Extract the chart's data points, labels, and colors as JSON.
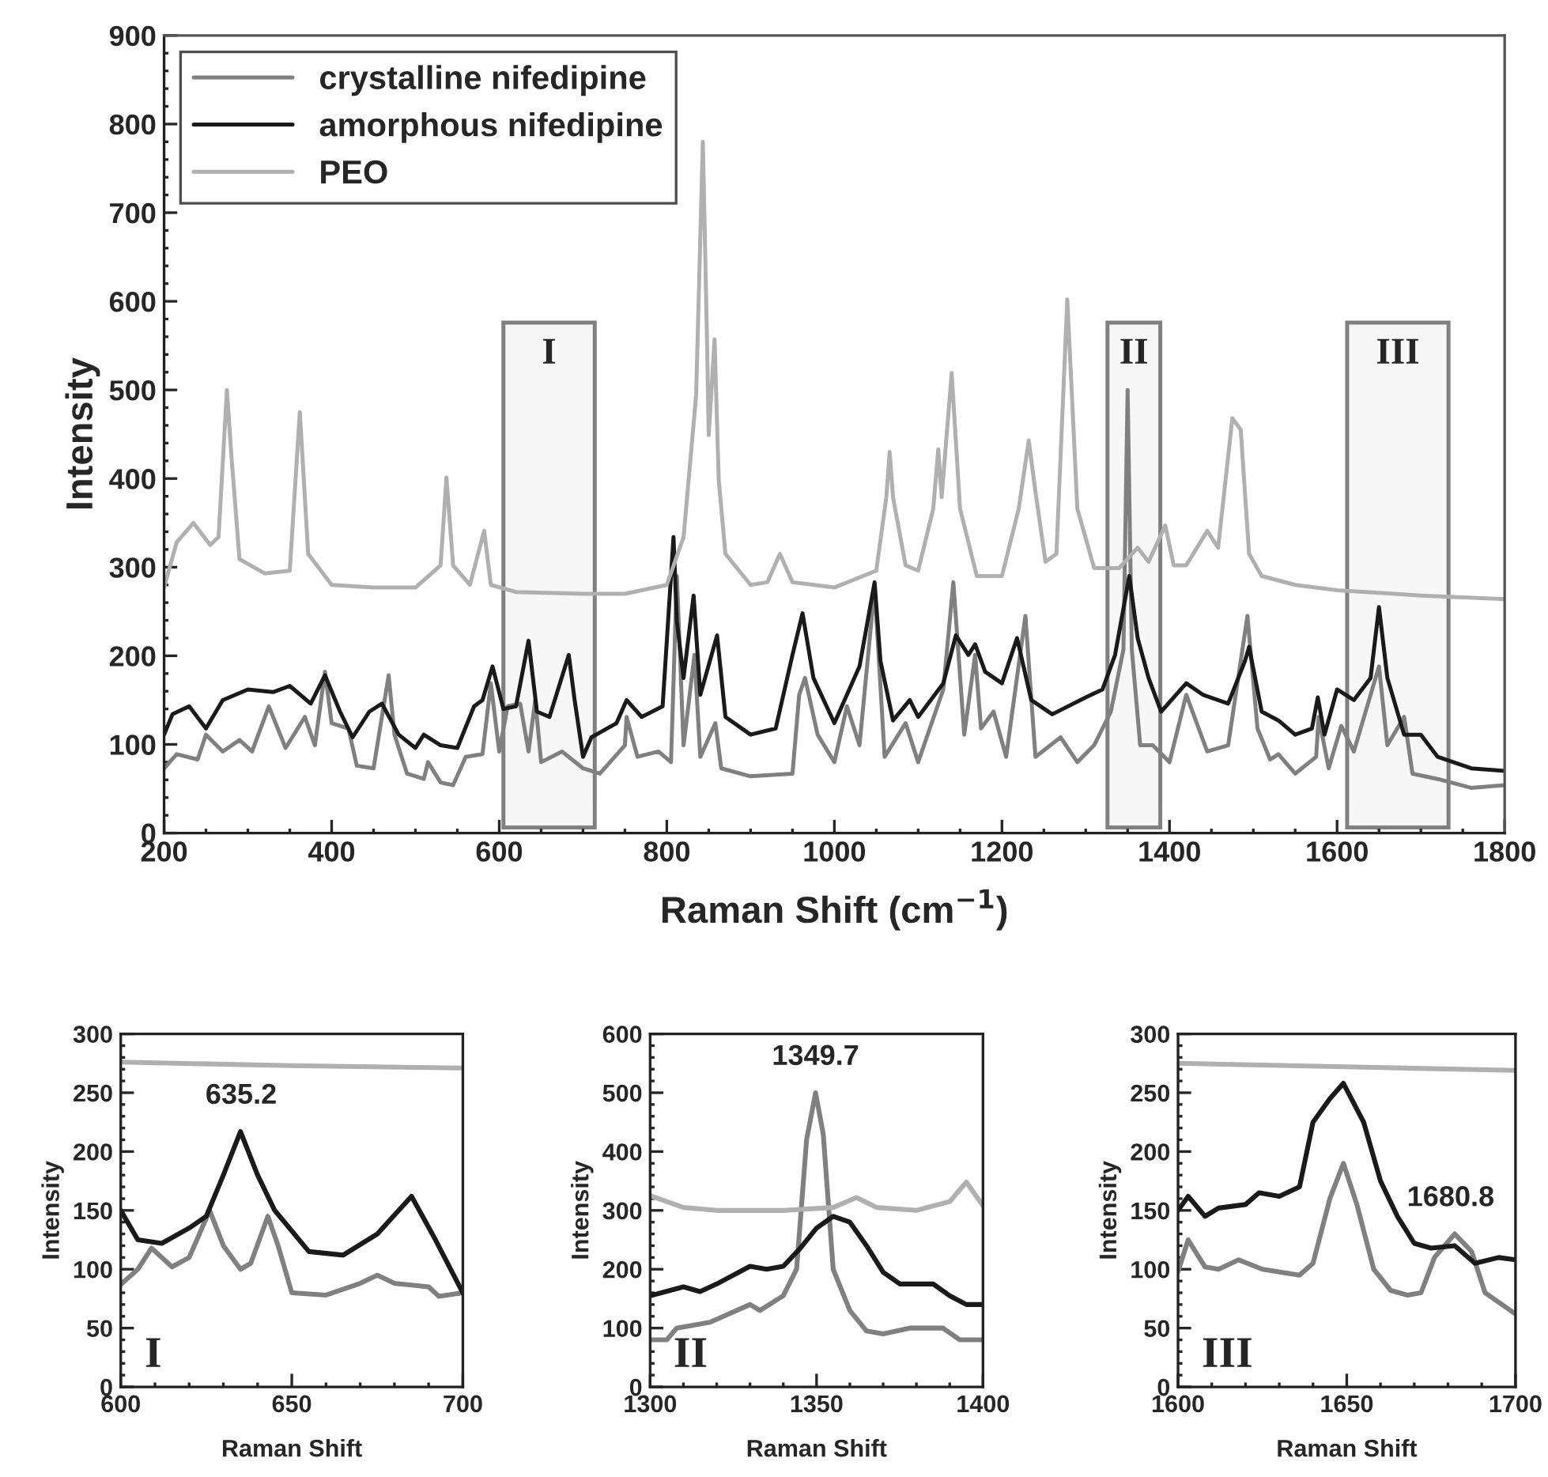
{
  "chart_data": [
    {
      "type": "line",
      "xlabel": "Raman Shift (cm$^{−1}$)",
      "ylabel": "Intensity",
      "xlim": [
        200,
        1800
      ],
      "ylim": [
        0,
        900
      ],
      "xticks": [
        200,
        400,
        600,
        800,
        1000,
        1200,
        1400,
        1600,
        1800
      ],
      "yticks": [
        0,
        100,
        200,
        300,
        400,
        500,
        600,
        700,
        800,
        900
      ],
      "legend": "top left",
      "grid": false,
      "bands": [
        {
          "axis": "x",
          "from": 605,
          "to": 714,
          "label": "I",
          "color": "#808080"
        },
        {
          "axis": "x",
          "from": 1326,
          "to": 1389,
          "label": "II",
          "color": "#808080"
        },
        {
          "axis": "x",
          "from": 1612,
          "to": 1733,
          "label": "III",
          "color": "#808080"
        }
      ],
      "series": [
        {
          "name": "crystalline nifedipine",
          "color": "#808080",
          "x": [
            200,
            215,
            240,
            250,
            270,
            290,
            305,
            325,
            345,
            368,
            380,
            392,
            400,
            420,
            430,
            450,
            468,
            475,
            490,
            510,
            515,
            530,
            545,
            560,
            580,
            590,
            600,
            610,
            625,
            635,
            643,
            650,
            675,
            700,
            720,
            750,
            752,
            765,
            790,
            805,
            812,
            820,
            833,
            840,
            858,
            865,
            900,
            950,
            958,
            965,
            980,
            1000,
            1015,
            1030,
            1048,
            1060,
            1085,
            1100,
            1130,
            1142,
            1155,
            1168,
            1175,
            1190,
            1205,
            1228,
            1240,
            1270,
            1290,
            1310,
            1330,
            1345,
            1350,
            1355,
            1365,
            1380,
            1400,
            1420,
            1445,
            1470,
            1493,
            1505,
            1520,
            1530,
            1550,
            1575,
            1578,
            1590,
            1605,
            1620,
            1650,
            1660,
            1680,
            1690,
            1720,
            1760,
            1800
          ],
          "values": [
            73,
            89,
            83,
            111,
            92,
            105,
            92,
            143,
            96,
            131,
            99,
            182,
            124,
            118,
            76,
            73,
            178,
            111,
            67,
            61,
            80,
            57,
            54,
            86,
            89,
            169,
            92,
            143,
            146,
            92,
            150,
            80,
            92,
            73,
            67,
            99,
            131,
            86,
            92,
            80,
            290,
            99,
            201,
            86,
            124,
            73,
            64,
            67,
            156,
            175,
            111,
            80,
            143,
            99,
            277,
            86,
            124,
            80,
            162,
            283,
            111,
            201,
            118,
            137,
            86,
            245,
            86,
            108,
            80,
            99,
            137,
            207,
            500,
            207,
            99,
            99,
            80,
            156,
            92,
            99,
            245,
            118,
            83,
            89,
            67,
            86,
            131,
            73,
            121,
            92,
            188,
            99,
            131,
            67,
            61,
            51,
            54
          ]
        },
        {
          "name": "amorphous nifedipine",
          "color": "#1a1a1a",
          "x": [
            200,
            210,
            230,
            250,
            270,
            300,
            330,
            350,
            375,
            392,
            410,
            425,
            445,
            460,
            480,
            500,
            510,
            530,
            550,
            570,
            580,
            592,
            605,
            620,
            635,
            645,
            660,
            683,
            690,
            700,
            710,
            740,
            752,
            770,
            795,
            808,
            812,
            820,
            832,
            840,
            860,
            870,
            900,
            930,
            950,
            962,
            975,
            1000,
            1030,
            1048,
            1055,
            1070,
            1090,
            1100,
            1130,
            1145,
            1160,
            1168,
            1180,
            1200,
            1218,
            1235,
            1260,
            1300,
            1320,
            1335,
            1352,
            1362,
            1375,
            1390,
            1420,
            1440,
            1470,
            1490,
            1495,
            1510,
            1530,
            1550,
            1570,
            1577,
            1585,
            1600,
            1620,
            1640,
            1650,
            1660,
            1680,
            1700,
            1720,
            1760,
            1800
          ],
          "values": [
            111,
            134,
            143,
            118,
            150,
            162,
            159,
            166,
            146,
            178,
            137,
            108,
            137,
            146,
            111,
            96,
            111,
            99,
            96,
            143,
            150,
            188,
            140,
            143,
            217,
            137,
            131,
            201,
            150,
            86,
            108,
            124,
            150,
            131,
            143,
            334,
            239,
            175,
            268,
            156,
            223,
            131,
            111,
            118,
            201,
            248,
            175,
            124,
            188,
            283,
            194,
            127,
            150,
            131,
            169,
            223,
            201,
            213,
            182,
            169,
            220,
            150,
            134,
            153,
            162,
            201,
            290,
            220,
            175,
            137,
            169,
            156,
            146,
            194,
            210,
            137,
            127,
            111,
            118,
            153,
            111,
            162,
            150,
            175,
            255,
            175,
            111,
            111,
            86,
            73,
            70
          ]
        },
        {
          "name": "PEO",
          "color": "#b0b0b0",
          "x": [
            200,
            215,
            235,
            255,
            265,
            275,
            280,
            290,
            320,
            350,
            362,
            372,
            400,
            450,
            500,
            530,
            537,
            545,
            565,
            582,
            590,
            620,
            700,
            750,
            800,
            820,
            835,
            843,
            848,
            850,
            857,
            862,
            870,
            900,
            920,
            935,
            950,
            1000,
            1050,
            1062,
            1066,
            1070,
            1085,
            1100,
            1118,
            1124,
            1128,
            1140,
            1150,
            1170,
            1200,
            1220,
            1232,
            1240,
            1252,
            1265,
            1278,
            1290,
            1310,
            1340,
            1362,
            1375,
            1395,
            1405,
            1420,
            1445,
            1458,
            1475,
            1485,
            1495,
            1510,
            1550,
            1600,
            1700,
            1800
          ],
          "values": [
            277,
            328,
            350,
            325,
            334,
            500,
            430,
            309,
            293,
            296,
            475,
            315,
            280,
            277,
            277,
            302,
            401,
            302,
            280,
            341,
            280,
            272,
            270,
            270,
            280,
            334,
            494,
            780,
            557,
            449,
            557,
            398,
            315,
            280,
            283,
            315,
            283,
            277,
            296,
            379,
            430,
            379,
            302,
            296,
            366,
            433,
            379,
            519,
            366,
            290,
            290,
            366,
            443,
            385,
            306,
            315,
            602,
            366,
            299,
            299,
            322,
            306,
            347,
            302,
            302,
            341,
            322,
            468,
            455,
            315,
            290,
            280,
            274,
            268,
            264
          ]
        }
      ]
    },
    {
      "type": "line",
      "xlabel": "Raman Shift",
      "ylabel": "Intensity",
      "xlim": [
        600,
        700
      ],
      "ylim": [
        0,
        300
      ],
      "xticks": [
        600,
        650,
        700
      ],
      "yticks": [
        0,
        50,
        100,
        150,
        200,
        250,
        300
      ],
      "grid": false,
      "annotations": [
        {
          "text": "635.2",
          "x": 635.2,
          "y": 217
        },
        "I"
      ],
      "series": [
        {
          "color": "#808080",
          "x": [
            600,
            605,
            609,
            615,
            620,
            626,
            630,
            635,
            638,
            643,
            646,
            650,
            660,
            670,
            675,
            680,
            690,
            693,
            700
          ],
          "values": [
            87,
            100,
            118,
            102,
            110,
            150,
            120,
            100,
            105,
            145,
            120,
            80,
            78,
            88,
            95,
            88,
            85,
            77,
            80
          ]
        },
        {
          "color": "#1a1a1a",
          "x": [
            600,
            605,
            612,
            620,
            625,
            630,
            635,
            640,
            645,
            655,
            665,
            675,
            685,
            692,
            700
          ],
          "values": [
            150,
            125,
            122,
            135,
            145,
            180,
            217,
            180,
            150,
            115,
            112,
            130,
            162,
            125,
            80
          ]
        },
        {
          "color": "#b0b0b0",
          "x": [
            600,
            650,
            700
          ],
          "values": [
            276,
            273,
            271
          ]
        }
      ]
    },
    {
      "type": "line",
      "xlabel": "Raman Shift",
      "ylabel": "Intensity",
      "xlim": [
        1300,
        1400
      ],
      "ylim": [
        0,
        600
      ],
      "xticks": [
        1300,
        1350,
        1400
      ],
      "yticks": [
        0,
        100,
        200,
        300,
        400,
        500,
        600
      ],
      "grid": false,
      "annotations": [
        {
          "text": "1349.7",
          "x": 1349.7,
          "y": 500
        },
        "II"
      ],
      "series": [
        {
          "color": "#808080",
          "x": [
            1300,
            1305,
            1308,
            1318,
            1330,
            1333,
            1340,
            1344,
            1347,
            1349.7,
            1352,
            1355,
            1360,
            1365,
            1370,
            1378,
            1388,
            1393,
            1400
          ],
          "values": [
            80,
            80,
            100,
            110,
            140,
            130,
            155,
            200,
            420,
            500,
            430,
            200,
            130,
            95,
            90,
            100,
            100,
            80,
            80
          ]
        },
        {
          "color": "#1a1a1a",
          "x": [
            1300,
            1310,
            1315,
            1320,
            1330,
            1335,
            1340,
            1345,
            1350,
            1355,
            1360,
            1365,
            1370,
            1375,
            1380,
            1385,
            1390,
            1395,
            1400
          ],
          "values": [
            155,
            170,
            162,
            175,
            205,
            200,
            205,
            235,
            270,
            290,
            280,
            240,
            195,
            175,
            175,
            175,
            155,
            140,
            140
          ]
        },
        {
          "color": "#b0b0b0",
          "x": [
            1300,
            1310,
            1320,
            1340,
            1355,
            1362,
            1368,
            1380,
            1390,
            1395,
            1400
          ],
          "values": [
            325,
            305,
            300,
            300,
            305,
            322,
            305,
            300,
            315,
            348,
            308
          ]
        }
      ]
    },
    {
      "type": "line",
      "xlabel": "Raman Shift",
      "ylabel": "Intensity",
      "xlim": [
        1600,
        1700
      ],
      "ylim": [
        0,
        300
      ],
      "xticks": [
        1600,
        1650,
        1700
      ],
      "yticks": [
        0,
        50,
        100,
        150,
        200,
        250,
        300
      ],
      "grid": false,
      "annotations": [
        {
          "text": "1680.8",
          "x": 1680.8,
          "y": 130
        },
        "III"
      ],
      "series": [
        {
          "color": "#808080",
          "x": [
            1600,
            1603,
            1608,
            1612,
            1618,
            1625,
            1636,
            1640,
            1645,
            1649,
            1653,
            1658,
            1663,
            1668,
            1672,
            1676,
            1682,
            1687,
            1691,
            1700
          ],
          "values": [
            98,
            125,
            102,
            100,
            108,
            100,
            95,
            105,
            160,
            190,
            155,
            100,
            82,
            78,
            80,
            110,
            130,
            115,
            80,
            62
          ]
        },
        {
          "color": "#1a1a1a",
          "x": [
            1600,
            1603,
            1608,
            1612,
            1620,
            1624,
            1630,
            1636,
            1640,
            1645,
            1649,
            1655,
            1660,
            1665,
            1670,
            1675,
            1682,
            1688,
            1695,
            1700
          ],
          "values": [
            150,
            162,
            145,
            152,
            155,
            165,
            162,
            170,
            225,
            245,
            258,
            225,
            175,
            145,
            122,
            118,
            120,
            105,
            110,
            108
          ]
        },
        {
          "color": "#b0b0b0",
          "x": [
            1600,
            1650,
            1700
          ],
          "values": [
            275,
            272,
            269
          ]
        }
      ]
    }
  ]
}
